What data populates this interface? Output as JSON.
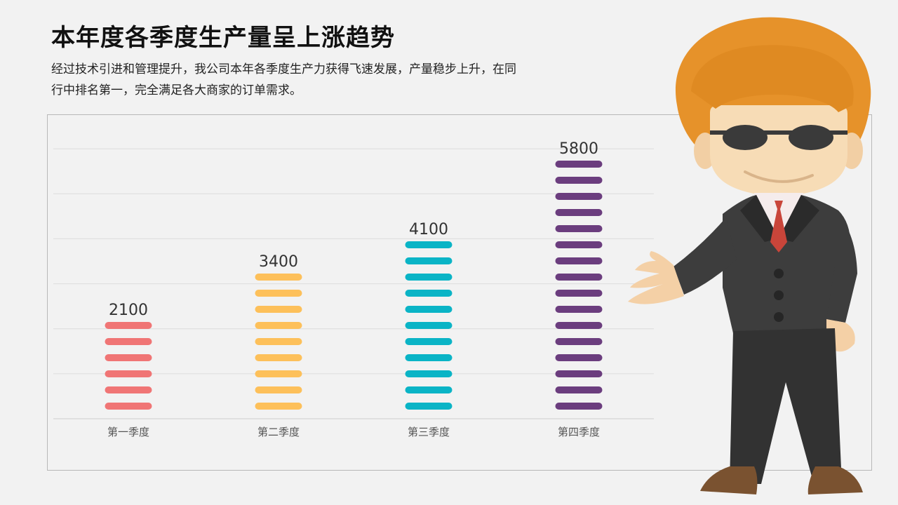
{
  "title": "本年度各季度生产量呈上涨趋势",
  "description": "经过技术引进和管理提升，我公司本年各季度生产力获得飞速发展，产量稳步上升，在同行中排名第一，完全满足各大商家的订单需求。",
  "colors": {
    "background": "#f2f2f2",
    "q1": "#f07575",
    "q2": "#fdc05a",
    "q3": "#0ab4c6",
    "q4": "#6b3d7e"
  },
  "character": {
    "icon": "businessman-with-sunglasses-illustration"
  },
  "chart_data": {
    "type": "bar",
    "categories": [
      "第一季度",
      "第二季度",
      "第三季度",
      "第四季度"
    ],
    "values": [
      2100,
      3400,
      4100,
      5800
    ],
    "data_labels": [
      "2100",
      "3400",
      "4100",
      "5800"
    ],
    "title": "",
    "xlabel": "",
    "ylabel": "",
    "ylim": [
      0,
      7000
    ],
    "grid": true,
    "legend": "none",
    "bar_style": "stacked-rounded-segments"
  }
}
